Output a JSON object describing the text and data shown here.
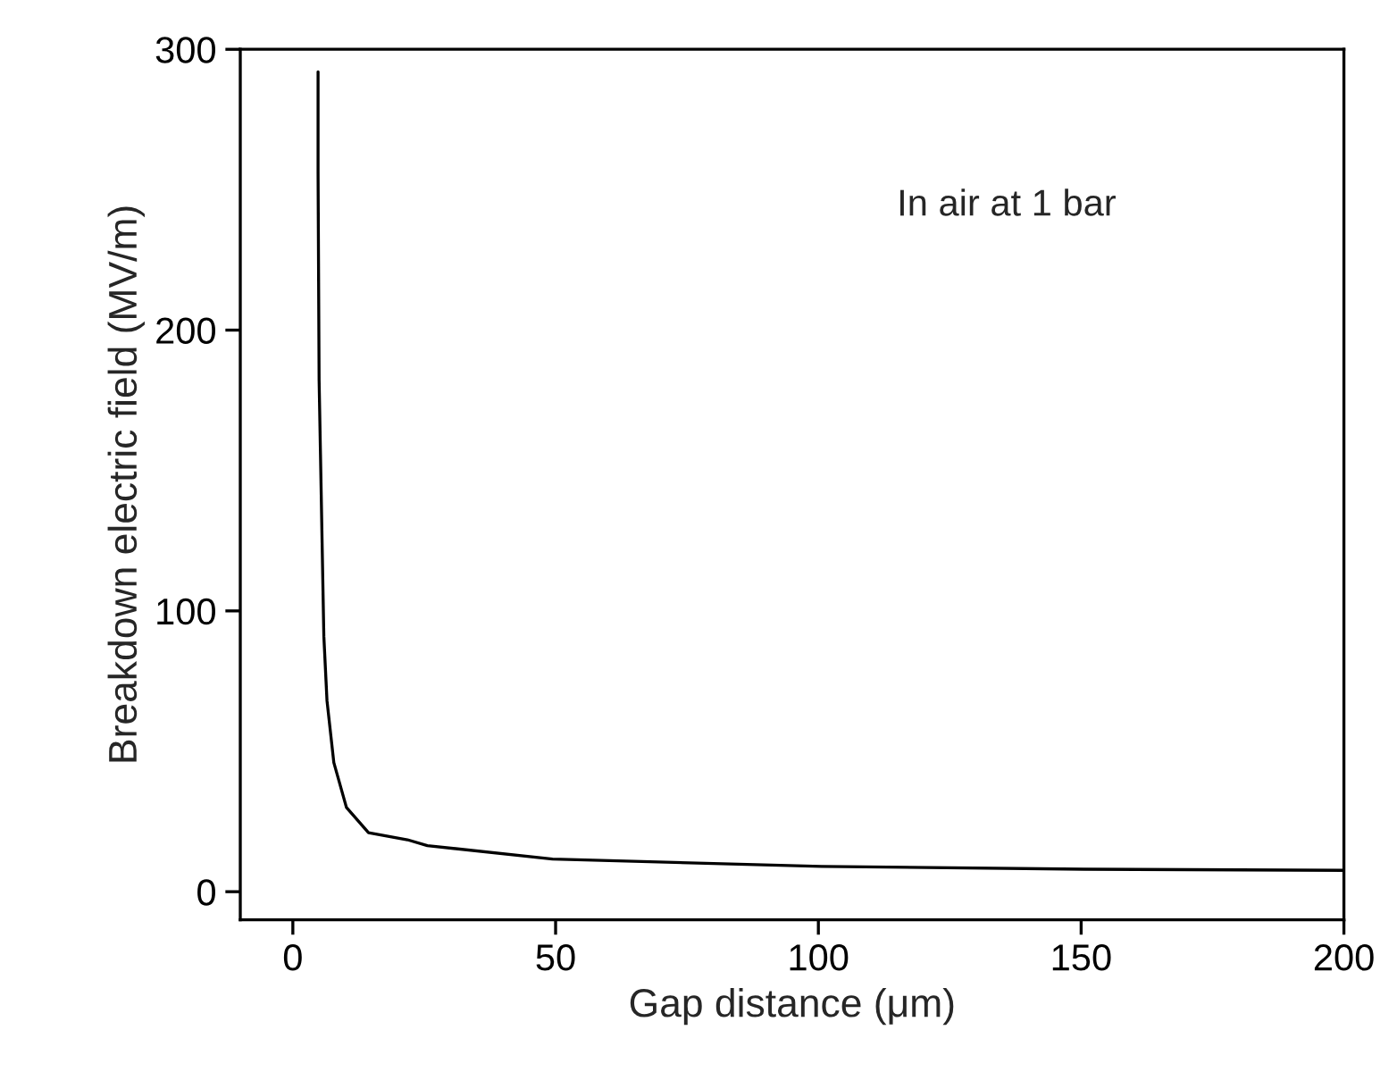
{
  "chart_data": {
    "type": "line",
    "xlabel": "Gap distance (μm)",
    "ylabel": "Breakdown electric field (MV/m)",
    "annotations": [
      "In air at 1 bar"
    ],
    "x": [
      4.8,
      4.8,
      5.0,
      5.9,
      6.5,
      7.8,
      10.2,
      14.4,
      21.8,
      25.6,
      49.4,
      100.6,
      150.6,
      200
    ],
    "series": [
      {
        "color": "#000000",
        "values": [
          292,
          256,
          182,
          91,
          68,
          46,
          30,
          21,
          18.5,
          16.4,
          11.6,
          9.0,
          8.0,
          7.6
        ]
      }
    ],
    "xlim": [
      -10,
      200
    ],
    "ylim": [
      -10,
      300
    ],
    "xticks": [
      0,
      50,
      100,
      150,
      200
    ],
    "yticks": [
      0,
      100,
      200,
      300
    ],
    "grid": false,
    "legend": false,
    "marker": "none",
    "line_style": "solid"
  }
}
